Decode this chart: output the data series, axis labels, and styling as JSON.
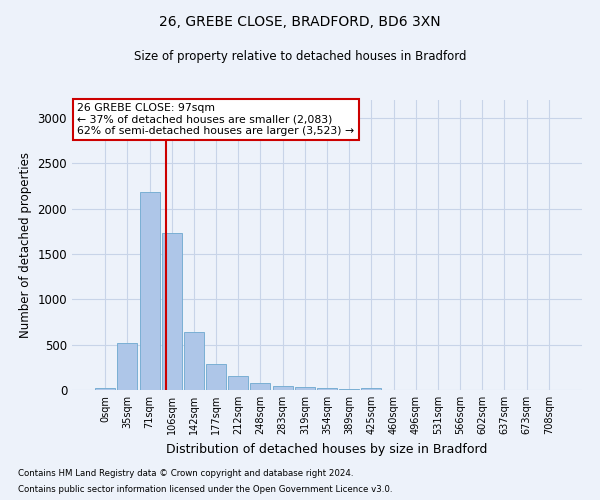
{
  "title_line1": "26, GREBE CLOSE, BRADFORD, BD6 3XN",
  "title_line2": "Size of property relative to detached houses in Bradford",
  "xlabel": "Distribution of detached houses by size in Bradford",
  "ylabel": "Number of detached properties",
  "bar_labels": [
    "0sqm",
    "35sqm",
    "71sqm",
    "106sqm",
    "142sqm",
    "177sqm",
    "212sqm",
    "248sqm",
    "283sqm",
    "319sqm",
    "354sqm",
    "389sqm",
    "425sqm",
    "460sqm",
    "496sqm",
    "531sqm",
    "566sqm",
    "602sqm",
    "637sqm",
    "673sqm",
    "708sqm"
  ],
  "bar_values": [
    25,
    520,
    2185,
    1730,
    635,
    285,
    155,
    75,
    45,
    30,
    20,
    15,
    20,
    5,
    5,
    0,
    0,
    0,
    0,
    0,
    0
  ],
  "bar_color": "#aec6e8",
  "bar_edge_color": "#7aafd4",
  "ylim": [
    0,
    3200
  ],
  "yticks": [
    0,
    500,
    1000,
    1500,
    2000,
    2500,
    3000
  ],
  "grid_color": "#c8d4e8",
  "property_line_x": 2.72,
  "annotation_title": "26 GREBE CLOSE: 97sqm",
  "annotation_line2": "← 37% of detached houses are smaller (2,083)",
  "annotation_line3": "62% of semi-detached houses are larger (3,523) →",
  "annotation_box_color": "#ffffff",
  "annotation_box_edge": "#cc0000",
  "vline_color": "#cc0000",
  "footnote1": "Contains HM Land Registry data © Crown copyright and database right 2024.",
  "footnote2": "Contains public sector information licensed under the Open Government Licence v3.0.",
  "bg_color": "#edf2fa"
}
